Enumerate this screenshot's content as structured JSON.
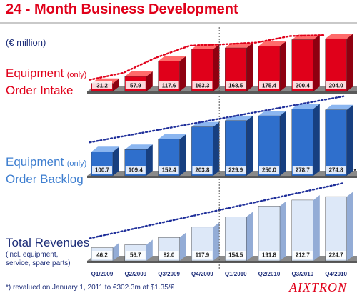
{
  "title": "24 - Month Business Development",
  "unit": "(€ million)",
  "labels": {
    "intake_main": "Equipment",
    "intake_only": "(only)",
    "intake_line2": "Order Intake",
    "backlog_main": "Equipment",
    "backlog_only": "(only)",
    "backlog_line2": "Order Backlog",
    "revenue_main": "Total Revenues",
    "revenue_sub1": "(incl. equipment,",
    "revenue_sub2": "service, spare parts)"
  },
  "footnote": "*) revalued on January 1, 2011 to €302.3m at $1.35/€",
  "logo": "AIXTRON",
  "colors": {
    "intake": "#e0001a",
    "backlog": "#2f6fcc",
    "revenue": "#dde8f8",
    "trend_red": "#e0001a",
    "trend_blue": "#1f2f9a"
  },
  "chart_data": [
    {
      "type": "bar",
      "name": "Equipment (only) Order Intake",
      "categories": [
        "Q1/2009",
        "Q2/2009",
        "Q3/2009",
        "Q4/2009",
        "Q1/2010",
        "Q2/2010",
        "Q3/2010",
        "Q4/2010"
      ],
      "values": [
        31.2,
        57.9,
        117.6,
        163.3,
        168.5,
        175.4,
        200.4,
        204.0
      ],
      "labels": [
        "31.2",
        "57.9",
        "117.6",
        "163.3",
        "168.5",
        "175.4",
        "200.4",
        "204.0"
      ],
      "trend": "dotted",
      "ylim": [
        0,
        210
      ]
    },
    {
      "type": "bar",
      "name": "Equipment (only) Order Backlog",
      "categories": [
        "Q1/2009",
        "Q2/2009",
        "Q3/2009",
        "Q4/2009",
        "Q1/2010",
        "Q2/2010",
        "Q3/2010",
        "Q4/2010"
      ],
      "values": [
        100.7,
        109.4,
        152.4,
        203.8,
        229.9,
        250.0,
        278.7,
        274.8
      ],
      "labels": [
        "100.7",
        "109.4",
        "152.4",
        "203.8",
        "229.9",
        "250.0",
        "278.7",
        "274.8"
      ],
      "annotation": "*",
      "trend": "dotted",
      "ylim": [
        0,
        280
      ]
    },
    {
      "type": "bar",
      "name": "Total Revenues (incl. equipment, service, spare parts)",
      "categories": [
        "Q1/2009",
        "Q2/2009",
        "Q3/2009",
        "Q4/2009",
        "Q1/2010",
        "Q2/2010",
        "Q3/2010",
        "Q4/2010"
      ],
      "values": [
        46.2,
        56.7,
        82.0,
        117.9,
        154.5,
        191.8,
        212.7,
        224.7
      ],
      "labels": [
        "46.2",
        "56.7",
        "82.0",
        "117.9",
        "154.5",
        "191.8",
        "212.7",
        "224.7"
      ],
      "trend": "dotted",
      "ylim": [
        0,
        230
      ]
    }
  ],
  "x_tick_labels": [
    "Q1/2009",
    "Q2/2009",
    "Q3/2009",
    "Q4/2009",
    "Q1/2010",
    "Q2/2010",
    "Q3/2010",
    "Q4/2010"
  ]
}
